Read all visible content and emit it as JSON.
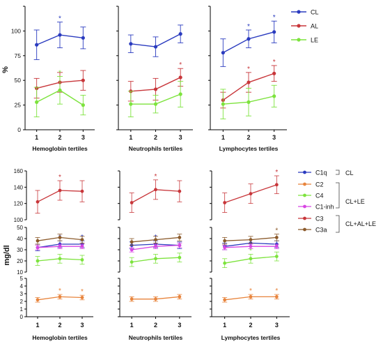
{
  "chart_data": [
    {
      "type": "line",
      "ylabel": "%",
      "yticks": [
        "0",
        "25",
        "50",
        "75",
        "100"
      ],
      "ylim": [
        0,
        125
      ],
      "x": [
        "1",
        "2",
        "3"
      ],
      "panels": [
        {
          "xlabel": "Hemoglobin tertiles",
          "series": [
            {
              "name": "CL",
              "color": "#2a3bbf",
              "values": [
                86,
                96,
                93
              ],
              "err": [
                15,
                13,
                11
              ],
              "sig": [
                false,
                true,
                false
              ]
            },
            {
              "name": "AL",
              "color": "#c8363a",
              "values": [
                42,
                48,
                50
              ],
              "err": [
                10,
                10,
                10
              ],
              "sig": [
                false,
                false,
                false
              ]
            },
            {
              "name": "LE",
              "color": "#7de33d",
              "values": [
                28,
                40,
                25
              ],
              "err": [
                15,
                14,
                10
              ],
              "sig": [
                false,
                true,
                false
              ]
            }
          ]
        },
        {
          "xlabel": "Neutrophils tertiles",
          "series": [
            {
              "name": "CL",
              "color": "#2a3bbf",
              "values": [
                87,
                84,
                97
              ],
              "err": [
                9,
                10,
                9
              ],
              "sig": [
                false,
                false,
                false
              ]
            },
            {
              "name": "AL",
              "color": "#c8363a",
              "values": [
                39,
                41,
                53
              ],
              "err": [
                10,
                11,
                9
              ],
              "sig": [
                false,
                false,
                true
              ]
            },
            {
              "name": "LE",
              "color": "#7de33d",
              "values": [
                26,
                26,
                36
              ],
              "err": [
                13,
                9,
                13
              ],
              "sig": [
                false,
                false,
                false
              ]
            }
          ]
        },
        {
          "xlabel": "Lymphocytes tertiles",
          "series": [
            {
              "name": "CL",
              "color": "#2a3bbf",
              "values": [
                78,
                92,
                99
              ],
              "err": [
                14,
                9,
                11
              ],
              "sig": [
                false,
                true,
                true
              ]
            },
            {
              "name": "AL",
              "color": "#c8363a",
              "values": [
                30,
                48,
                57
              ],
              "err": [
                8,
                10,
                8
              ],
              "sig": [
                false,
                true,
                true
              ]
            },
            {
              "name": "LE",
              "color": "#7de33d",
              "values": [
                26,
                28,
                34
              ],
              "err": [
                15,
                14,
                11
              ],
              "sig": [
                false,
                false,
                false
              ]
            }
          ]
        }
      ],
      "legend": [
        {
          "name": "CL",
          "color": "#2a3bbf"
        },
        {
          "name": "AL",
          "color": "#c8363a"
        },
        {
          "name": "LE",
          "color": "#7de33d"
        }
      ]
    },
    {
      "type": "line",
      "ylabel": "mg/dl",
      "x": [
        "1",
        "2",
        "3"
      ],
      "top_yticks": [
        "100",
        "120",
        "140",
        "160"
      ],
      "top_ylim": [
        100,
        160
      ],
      "mid_yticks": [
        "10",
        "20",
        "30",
        "40",
        "50"
      ],
      "mid_ylim": [
        10,
        50
      ],
      "low_yticks": [
        "0",
        "1",
        "2",
        "3",
        "4",
        "5"
      ],
      "low_ylim": [
        0,
        5
      ],
      "panels": [
        {
          "xlabel": "Hemoglobin tertiles",
          "series": [
            {
              "name": "C1q",
              "color": "#2a3bbf",
              "axis": "mid",
              "values": [
                32,
                35,
                35
              ],
              "err": [
                3,
                3,
                3
              ],
              "sig": [
                false,
                true,
                true
              ]
            },
            {
              "name": "C2",
              "color": "#e8843c",
              "axis": "low",
              "values": [
                2.2,
                2.6,
                2.5
              ],
              "err": [
                0.3,
                0.3,
                0.3
              ],
              "sig": [
                false,
                true,
                true
              ]
            },
            {
              "name": "C4",
              "color": "#7de33d",
              "axis": "mid",
              "values": [
                20,
                22,
                21
              ],
              "err": [
                4,
                4,
                4
              ],
              "sig": [
                false,
                false,
                false
              ]
            },
            {
              "name": "C1-inh",
              "color": "#d845e3",
              "axis": "mid",
              "values": [
                32,
                33,
                33
              ],
              "err": [
                2,
                2,
                2
              ],
              "sig": [
                false,
                false,
                false
              ]
            },
            {
              "name": "C3",
              "color": "#c8363a",
              "axis": "top",
              "values": [
                122,
                136,
                135
              ],
              "err": [
                14,
                12,
                13
              ],
              "sig": [
                false,
                true,
                false
              ]
            },
            {
              "name": "C3a",
              "color": "#8b5a2b",
              "axis": "mid",
              "values": [
                38,
                41,
                39
              ],
              "err": [
                3,
                3,
                3
              ],
              "sig": [
                false,
                false,
                false
              ]
            }
          ]
        },
        {
          "xlabel": "Neutrophils tertiles",
          "series": [
            {
              "name": "C1q",
              "color": "#2a3bbf",
              "axis": "mid",
              "values": [
                34,
                35,
                34
              ],
              "err": [
                3,
                3,
                3
              ],
              "sig": [
                false,
                true,
                true
              ]
            },
            {
              "name": "C2",
              "color": "#e8843c",
              "axis": "low",
              "values": [
                2.3,
                2.3,
                2.6
              ],
              "err": [
                0.3,
                0.3,
                0.3
              ],
              "sig": [
                false,
                false,
                false
              ]
            },
            {
              "name": "C4",
              "color": "#7de33d",
              "axis": "mid",
              "values": [
                19,
                22,
                23
              ],
              "err": [
                4,
                4,
                4
              ],
              "sig": [
                false,
                false,
                false
              ]
            },
            {
              "name": "C1-inh",
              "color": "#d845e3",
              "axis": "mid",
              "values": [
                30,
                33,
                34
              ],
              "err": [
                2,
                2,
                2
              ],
              "sig": [
                false,
                false,
                false
              ]
            },
            {
              "name": "C3",
              "color": "#c8363a",
              "axis": "top",
              "values": [
                121,
                137,
                135
              ],
              "err": [
                12,
                12,
                13
              ],
              "sig": [
                false,
                true,
                false
              ]
            },
            {
              "name": "C3a",
              "color": "#8b5a2b",
              "axis": "mid",
              "values": [
                37,
                39,
                41
              ],
              "err": [
                3,
                3,
                3
              ],
              "sig": [
                false,
                false,
                false
              ]
            }
          ]
        },
        {
          "xlabel": "Lymphocytes tertiles",
          "series": [
            {
              "name": "C1q",
              "color": "#2a3bbf",
              "axis": "mid",
              "values": [
                33,
                36,
                35
              ],
              "err": [
                3,
                3,
                3
              ],
              "sig": [
                false,
                false,
                false
              ]
            },
            {
              "name": "C2",
              "color": "#e8843c",
              "axis": "low",
              "values": [
                2.2,
                2.6,
                2.6
              ],
              "err": [
                0.3,
                0.3,
                0.3
              ],
              "sig": [
                false,
                true,
                true
              ]
            },
            {
              "name": "C4",
              "color": "#7de33d",
              "axis": "mid",
              "values": [
                18,
                22,
                24
              ],
              "err": [
                4,
                4,
                4
              ],
              "sig": [
                false,
                true,
                false
              ]
            },
            {
              "name": "C1-inh",
              "color": "#d845e3",
              "axis": "mid",
              "values": [
                32,
                33,
                33
              ],
              "err": [
                2,
                2,
                2
              ],
              "sig": [
                false,
                false,
                false
              ]
            },
            {
              "name": "C3",
              "color": "#c8363a",
              "axis": "top",
              "values": [
                121,
                132,
                143
              ],
              "err": [
                12,
                12,
                11
              ],
              "sig": [
                false,
                false,
                true
              ]
            },
            {
              "name": "C3a",
              "color": "#8b5a2b",
              "axis": "mid",
              "values": [
                38,
                39,
                41
              ],
              "err": [
                3,
                3,
                3
              ],
              "sig": [
                false,
                false,
                true
              ]
            }
          ]
        }
      ],
      "legend": [
        {
          "name": "C1q",
          "color": "#2a3bbf"
        },
        {
          "name": "C2",
          "color": "#e8843c"
        },
        {
          "name": "C4",
          "color": "#7de33d"
        },
        {
          "name": "C1-inh",
          "color": "#d845e3"
        },
        {
          "name": "C3",
          "color": "#c8363a"
        },
        {
          "name": "C3a",
          "color": "#8b5a2b"
        }
      ],
      "groups": [
        {
          "label": "CL",
          "members": [
            "C1q"
          ]
        },
        {
          "label": "CL+LE",
          "members": [
            "C2",
            "C4",
            "C1-inh"
          ]
        },
        {
          "label": "CL+AL+LE",
          "members": [
            "C3",
            "C3a"
          ]
        }
      ]
    }
  ],
  "sig_marker": "*"
}
